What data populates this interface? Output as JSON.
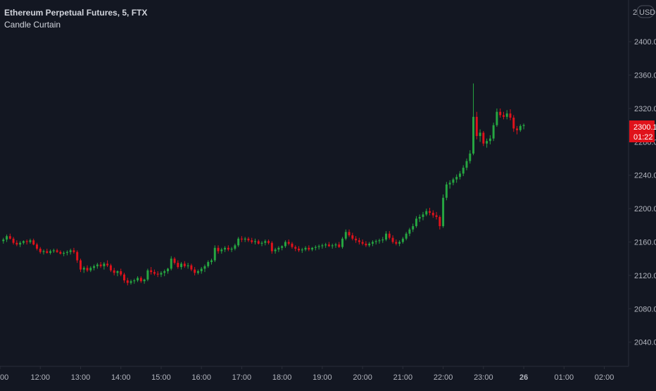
{
  "legend": {
    "symbol_line": "Ethereum Perpetual Futures, 5, FTX",
    "indicator_name": "Candle Curtain"
  },
  "price_axis": {
    "currency_label": "USD",
    "currency_prefix": "2"
  },
  "last_price": {
    "value": "2300.1",
    "countdown": "01:22"
  },
  "colors": {
    "background": "#131722",
    "up": "#26a641",
    "down": "#e0121b",
    "axis_text": "#b2b5be",
    "axis_line": "#2a2e39",
    "last_price_bg": "#e0121b"
  },
  "chart_data": {
    "type": "candlestick",
    "y_ticks": [
      2040,
      2080,
      2120,
      2160,
      2200,
      2240,
      2280,
      2320,
      2360,
      2400
    ],
    "ylim": [
      2011,
      2450
    ],
    "x_ticks": [
      "00",
      "12:00",
      "13:00",
      "14:00",
      "15:00",
      "16:00",
      "17:00",
      "18:00",
      "19:00",
      "20:00",
      "21:00",
      "22:00",
      "23:00",
      "26",
      "01:00",
      "02:00"
    ],
    "bold_x_ticks": [
      "26"
    ],
    "time_range": [
      "11:00",
      "02:12"
    ],
    "candles": [
      [
        2161,
        2165,
        2158,
        2163
      ],
      [
        2163,
        2169,
        2160,
        2167
      ],
      [
        2167,
        2170,
        2163,
        2164
      ],
      [
        2164,
        2166,
        2157,
        2159
      ],
      [
        2159,
        2162,
        2155,
        2157
      ],
      [
        2157,
        2161,
        2154,
        2159
      ],
      [
        2159,
        2162,
        2157,
        2161
      ],
      [
        2161,
        2163,
        2157,
        2160
      ],
      [
        2160,
        2164,
        2158,
        2162
      ],
      [
        2162,
        2164,
        2156,
        2157
      ],
      [
        2157,
        2159,
        2150,
        2152
      ],
      [
        2152,
        2154,
        2146,
        2148
      ],
      [
        2148,
        2151,
        2145,
        2149
      ],
      [
        2149,
        2152,
        2146,
        2147
      ],
      [
        2147,
        2151,
        2145,
        2149
      ],
      [
        2149,
        2152,
        2147,
        2150
      ],
      [
        2150,
        2152,
        2147,
        2148
      ],
      [
        2148,
        2150,
        2145,
        2146
      ],
      [
        2146,
        2149,
        2143,
        2147
      ],
      [
        2147,
        2150,
        2144,
        2148
      ],
      [
        2148,
        2152,
        2145,
        2150
      ],
      [
        2150,
        2153,
        2146,
        2148
      ],
      [
        2148,
        2150,
        2135,
        2138
      ],
      [
        2138,
        2140,
        2124,
        2127
      ],
      [
        2127,
        2131,
        2123,
        2129
      ],
      [
        2129,
        2132,
        2124,
        2126
      ],
      [
        2126,
        2131,
        2124,
        2129
      ],
      [
        2129,
        2133,
        2126,
        2131
      ],
      [
        2131,
        2135,
        2128,
        2133
      ],
      [
        2133,
        2136,
        2129,
        2131
      ],
      [
        2131,
        2136,
        2127,
        2134
      ],
      [
        2134,
        2138,
        2130,
        2132
      ],
      [
        2132,
        2134,
        2124,
        2126
      ],
      [
        2126,
        2129,
        2120,
        2123
      ],
      [
        2123,
        2126,
        2119,
        2125
      ],
      [
        2125,
        2128,
        2119,
        2121
      ],
      [
        2121,
        2123,
        2111,
        2114
      ],
      [
        2114,
        2117,
        2108,
        2111
      ],
      [
        2111,
        2115,
        2109,
        2113
      ],
      [
        2113,
        2116,
        2110,
        2114
      ],
      [
        2114,
        2119,
        2112,
        2117
      ],
      [
        2117,
        2119,
        2111,
        2113
      ],
      [
        2113,
        2116,
        2110,
        2115
      ],
      [
        2115,
        2128,
        2113,
        2126
      ],
      [
        2126,
        2130,
        2121,
        2124
      ],
      [
        2124,
        2127,
        2120,
        2122
      ],
      [
        2122,
        2125,
        2118,
        2121
      ],
      [
        2121,
        2125,
        2118,
        2123
      ],
      [
        2123,
        2127,
        2119,
        2125
      ],
      [
        2125,
        2129,
        2122,
        2128
      ],
      [
        2128,
        2143,
        2126,
        2140
      ],
      [
        2140,
        2142,
        2133,
        2135
      ],
      [
        2135,
        2138,
        2128,
        2130
      ],
      [
        2130,
        2136,
        2127,
        2134
      ],
      [
        2134,
        2137,
        2129,
        2131
      ],
      [
        2131,
        2135,
        2128,
        2132
      ],
      [
        2132,
        2134,
        2125,
        2127
      ],
      [
        2127,
        2130,
        2120,
        2123
      ],
      [
        2123,
        2127,
        2121,
        2125
      ],
      [
        2125,
        2130,
        2122,
        2128
      ],
      [
        2128,
        2133,
        2124,
        2131
      ],
      [
        2131,
        2138,
        2129,
        2136
      ],
      [
        2136,
        2140,
        2133,
        2138
      ],
      [
        2138,
        2156,
        2136,
        2153
      ],
      [
        2153,
        2156,
        2146,
        2149
      ],
      [
        2149,
        2153,
        2146,
        2151
      ],
      [
        2151,
        2155,
        2148,
        2153
      ],
      [
        2153,
        2156,
        2149,
        2151
      ],
      [
        2151,
        2154,
        2148,
        2152
      ],
      [
        2152,
        2158,
        2150,
        2156
      ],
      [
        2156,
        2166,
        2154,
        2164
      ],
      [
        2164,
        2167,
        2160,
        2163
      ],
      [
        2163,
        2166,
        2160,
        2164
      ],
      [
        2164,
        2166,
        2160,
        2162
      ],
      [
        2162,
        2165,
        2158,
        2160
      ],
      [
        2160,
        2164,
        2157,
        2161
      ],
      [
        2161,
        2163,
        2157,
        2158
      ],
      [
        2158,
        2161,
        2155,
        2159
      ],
      [
        2159,
        2163,
        2156,
        2161
      ],
      [
        2161,
        2163,
        2157,
        2159
      ],
      [
        2159,
        2161,
        2146,
        2149
      ],
      [
        2149,
        2153,
        2146,
        2151
      ],
      [
        2151,
        2155,
        2148,
        2153
      ],
      [
        2153,
        2156,
        2150,
        2155
      ],
      [
        2155,
        2162,
        2153,
        2160
      ],
      [
        2160,
        2163,
        2156,
        2158
      ],
      [
        2158,
        2160,
        2152,
        2154
      ],
      [
        2154,
        2156,
        2149,
        2152
      ],
      [
        2152,
        2155,
        2148,
        2150
      ],
      [
        2150,
        2153,
        2147,
        2151
      ],
      [
        2151,
        2155,
        2149,
        2153
      ],
      [
        2153,
        2156,
        2149,
        2151
      ],
      [
        2151,
        2154,
        2149,
        2153
      ],
      [
        2153,
        2156,
        2150,
        2154
      ],
      [
        2154,
        2157,
        2151,
        2155
      ],
      [
        2155,
        2158,
        2152,
        2156
      ],
      [
        2156,
        2159,
        2153,
        2157
      ],
      [
        2157,
        2160,
        2154,
        2155
      ],
      [
        2155,
        2158,
        2152,
        2156
      ],
      [
        2156,
        2159,
        2153,
        2157
      ],
      [
        2157,
        2160,
        2153,
        2154
      ],
      [
        2154,
        2166,
        2152,
        2164
      ],
      [
        2164,
        2175,
        2162,
        2172
      ],
      [
        2172,
        2175,
        2166,
        2168
      ],
      [
        2168,
        2171,
        2162,
        2164
      ],
      [
        2164,
        2167,
        2159,
        2162
      ],
      [
        2162,
        2165,
        2157,
        2160
      ],
      [
        2160,
        2163,
        2156,
        2158
      ],
      [
        2158,
        2161,
        2154,
        2156
      ],
      [
        2156,
        2160,
        2154,
        2158
      ],
      [
        2158,
        2162,
        2155,
        2160
      ],
      [
        2160,
        2163,
        2157,
        2161
      ],
      [
        2161,
        2164,
        2158,
        2162
      ],
      [
        2162,
        2166,
        2159,
        2163
      ],
      [
        2163,
        2173,
        2161,
        2170
      ],
      [
        2170,
        2173,
        2163,
        2165
      ],
      [
        2165,
        2168,
        2158,
        2160
      ],
      [
        2160,
        2163,
        2156,
        2158
      ],
      [
        2158,
        2162,
        2155,
        2160
      ],
      [
        2160,
        2166,
        2158,
        2164
      ],
      [
        2164,
        2172,
        2162,
        2170
      ],
      [
        2170,
        2177,
        2167,
        2175
      ],
      [
        2175,
        2182,
        2172,
        2179
      ],
      [
        2179,
        2191,
        2177,
        2188
      ],
      [
        2188,
        2193,
        2184,
        2190
      ],
      [
        2190,
        2196,
        2186,
        2193
      ],
      [
        2193,
        2200,
        2191,
        2197
      ],
      [
        2197,
        2201,
        2192,
        2195
      ],
      [
        2195,
        2198,
        2189,
        2192
      ],
      [
        2192,
        2196,
        2187,
        2190
      ],
      [
        2190,
        2192,
        2175,
        2179
      ],
      [
        2179,
        2217,
        2177,
        2213
      ],
      [
        2213,
        2232,
        2210,
        2229
      ],
      [
        2229,
        2234,
        2224,
        2231
      ],
      [
        2231,
        2237,
        2228,
        2235
      ],
      [
        2235,
        2241,
        2231,
        2238
      ],
      [
        2238,
        2245,
        2235,
        2242
      ],
      [
        2242,
        2252,
        2239,
        2249
      ],
      [
        2249,
        2260,
        2246,
        2257
      ],
      [
        2257,
        2270,
        2254,
        2266
      ],
      [
        2266,
        2350,
        2264,
        2310
      ],
      [
        2310,
        2316,
        2283,
        2287
      ],
      [
        2287,
        2295,
        2280,
        2291
      ],
      [
        2291,
        2293,
        2275,
        2278
      ],
      [
        2278,
        2284,
        2273,
        2281
      ],
      [
        2281,
        2288,
        2277,
        2284
      ],
      [
        2284,
        2303,
        2281,
        2300
      ],
      [
        2300,
        2320,
        2298,
        2316
      ],
      [
        2316,
        2320,
        2309,
        2312
      ],
      [
        2312,
        2316,
        2307,
        2310
      ],
      [
        2310,
        2318,
        2307,
        2314
      ],
      [
        2314,
        2319,
        2306,
        2309
      ],
      [
        2309,
        2312,
        2292,
        2296
      ],
      [
        2296,
        2299,
        2289,
        2294
      ],
      [
        2294,
        2301,
        2292,
        2299
      ],
      [
        2299,
        2302,
        2295,
        2300.1
      ]
    ]
  }
}
